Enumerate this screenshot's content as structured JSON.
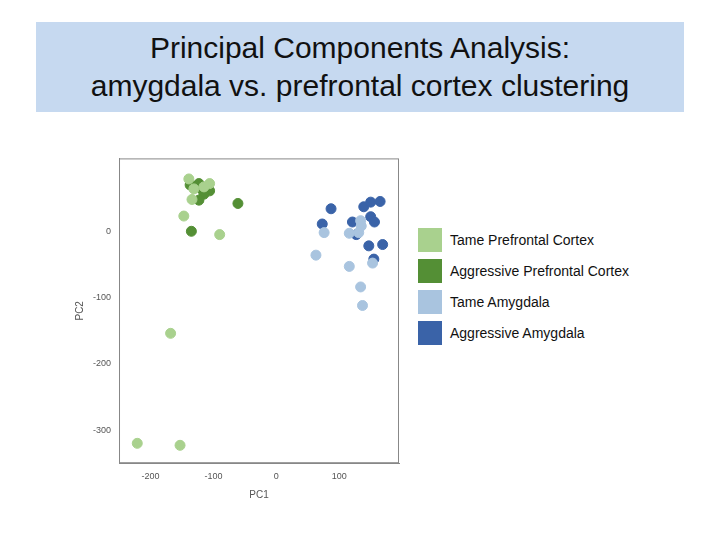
{
  "chart_data": {
    "type": "scatter",
    "title": [
      "Principal Components Analysis:",
      "amygdala vs. prefrontal cortex clustering"
    ],
    "x_label": "PC1",
    "y_label": "PC2",
    "xlim": [
      -250,
      195
    ],
    "ylim": [
      -350,
      110
    ],
    "xticks": [
      -200,
      -100,
      0,
      100
    ],
    "yticks": [
      -300,
      -200,
      -100,
      0
    ],
    "grid": false,
    "legend": "right",
    "marker": "circle",
    "series": [
      {
        "name": "Tame Prefrontal Cortex",
        "color": "#a9d18e",
        "x": [
          -139,
          -131,
          -134,
          -147,
          -90,
          -168,
          -221,
          -153,
          -106,
          -115
        ],
        "y": [
          79,
          64,
          48,
          23,
          -5,
          -154,
          -320,
          -323,
          72,
          67
        ]
      },
      {
        "name": "Aggressive Prefrontal Cortex",
        "color": "#548f35",
        "x": [
          -137,
          -123,
          -119,
          -111,
          -106,
          -115,
          -123,
          -135,
          -61,
          -127
        ],
        "y": [
          70,
          72,
          64,
          67,
          61,
          56,
          47,
          0,
          42,
          68
        ]
      },
      {
        "name": "Tame Amygdala",
        "color": "#a9c4df",
        "x": [
          76,
          63,
          116,
          134,
          135,
          131,
          134,
          137,
          153,
          116
        ],
        "y": [
          -2,
          -36,
          -53,
          16,
          8,
          -2,
          -84,
          -112,
          -48,
          -3
        ]
      },
      {
        "name": "Aggressive Amygdala",
        "color": "#3a63a8",
        "x": [
          73,
          87,
          121,
          139,
          150,
          165,
          150,
          156,
          127,
          147,
          169,
          155
        ],
        "y": [
          11,
          34,
          14,
          37,
          44,
          45,
          22,
          14,
          -5,
          -22,
          -20,
          -42
        ]
      }
    ]
  }
}
